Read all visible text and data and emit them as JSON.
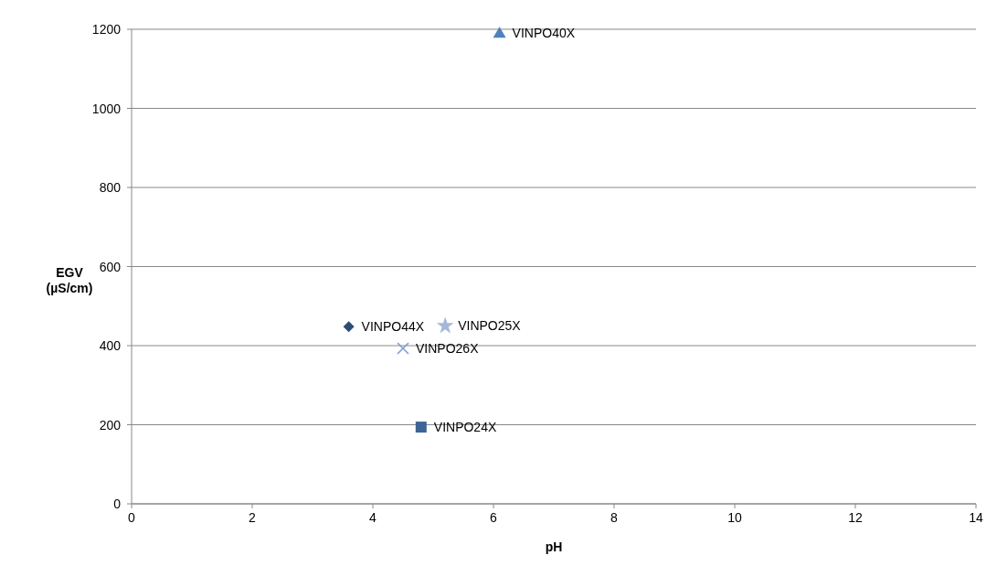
{
  "chart_data": {
    "type": "scatter",
    "xlabel": "pH",
    "ylabel": "EGV (µS/cm)",
    "xlim": [
      0,
      14
    ],
    "xticks": [
      0,
      2,
      4,
      6,
      8,
      10,
      12,
      14
    ],
    "ylim": [
      0,
      1200
    ],
    "yticks": [
      0,
      200,
      400,
      600,
      800,
      1000,
      1200
    ],
    "grid": "y",
    "legend": false,
    "series": [
      {
        "name": "VINPO40X",
        "color": "#4f81bd",
        "marker": "triangle",
        "x": [
          6.1
        ],
        "values": [
          1190
        ]
      },
      {
        "name": "VINPO44X",
        "color": "#2c4d75",
        "marker": "diamond",
        "x": [
          3.6
        ],
        "values": [
          448
        ]
      },
      {
        "name": "VINPO25X",
        "color": "#a5b7d9",
        "marker": "star",
        "x": [
          5.2
        ],
        "values": [
          450
        ]
      },
      {
        "name": "VINPO26X",
        "color": "#7f9fcf",
        "marker": "cross",
        "x": [
          4.5
        ],
        "values": [
          393
        ]
      },
      {
        "name": "VINPO24X",
        "color": "#3c6496",
        "marker": "square",
        "x": [
          4.8
        ],
        "values": [
          194
        ]
      }
    ]
  }
}
